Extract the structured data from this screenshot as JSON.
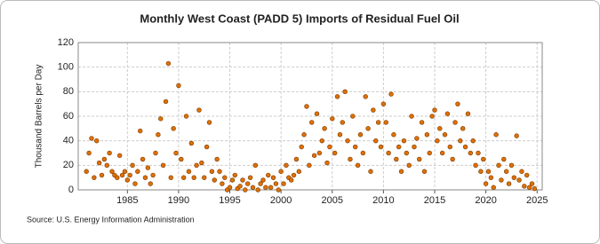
{
  "chart_data": {
    "type": "scatter",
    "title": "Monthly West Coast (PADD 5) Imports of Residual Fuel Oil",
    "y_label": "Thousand Barrels per Day",
    "source": "Source: U.S. Energy Information Administration",
    "xlim": [
      1980.2,
      2025.5
    ],
    "ylim": [
      0,
      120
    ],
    "xticks": [
      1985,
      1990,
      1995,
      2000,
      2005,
      2010,
      2015,
      2020,
      2025
    ],
    "yticks": [
      0,
      20,
      40,
      60,
      80,
      100,
      120
    ],
    "grid": true,
    "series": [
      {
        "color": "#e07000",
        "x": [
          1981,
          1981.25,
          1981.5,
          1981.75,
          1982,
          1982.25,
          1982.5,
          1982.75,
          1983,
          1983.25,
          1983.5,
          1983.75,
          1984,
          1984.25,
          1984.5,
          1984.75,
          1985,
          1985.25,
          1985.5,
          1985.75,
          1986,
          1986.25,
          1986.5,
          1986.75,
          1987,
          1987.25,
          1987.5,
          1987.75,
          1988,
          1988.25,
          1988.5,
          1988.75,
          1989,
          1989.25,
          1989.5,
          1989.75,
          1990,
          1990.25,
          1990.5,
          1990.75,
          1991,
          1991.25,
          1991.5,
          1991.75,
          1992,
          1992.25,
          1992.5,
          1992.75,
          1993,
          1993.25,
          1993.5,
          1993.75,
          1994,
          1994.25,
          1994.5,
          1994.75,
          1995,
          1995.25,
          1995.5,
          1995.75,
          1996,
          1996.25,
          1996.5,
          1996.75,
          1997,
          1997.25,
          1997.5,
          1997.75,
          1998,
          1998.25,
          1998.5,
          1998.75,
          1999,
          1999.25,
          1999.5,
          1999.75,
          2000,
          2000.25,
          2000.5,
          2000.75,
          2001,
          2001.25,
          2001.5,
          2001.75,
          2002,
          2002.25,
          2002.5,
          2002.75,
          2003,
          2003.25,
          2003.5,
          2003.75,
          2004,
          2004.25,
          2004.5,
          2004.75,
          2005,
          2005.25,
          2005.5,
          2005.75,
          2006,
          2006.25,
          2006.5,
          2006.75,
          2007,
          2007.25,
          2007.5,
          2007.75,
          2008,
          2008.25,
          2008.5,
          2008.75,
          2009,
          2009.25,
          2009.5,
          2009.75,
          2010,
          2010.25,
          2010.5,
          2010.75,
          2011,
          2011.25,
          2011.5,
          2011.75,
          2012,
          2012.25,
          2012.5,
          2012.75,
          2013,
          2013.25,
          2013.5,
          2013.75,
          2014,
          2014.25,
          2014.5,
          2014.75,
          2015,
          2015.25,
          2015.5,
          2015.75,
          2016,
          2016.25,
          2016.5,
          2016.75,
          2017,
          2017.25,
          2017.5,
          2017.75,
          2018,
          2018.25,
          2018.5,
          2018.75,
          2019,
          2019.25,
          2019.5,
          2019.75,
          2020,
          2020.25,
          2020.5,
          2020.75,
          2021,
          2021.25,
          2021.5,
          2021.75,
          2022,
          2022.25,
          2022.5,
          2022.75,
          2023,
          2023.25,
          2023.5,
          2023.75,
          2024,
          2024.25,
          2024.5,
          2024.75
        ],
        "values": [
          15,
          30,
          42,
          10,
          40,
          22,
          12,
          25,
          20,
          30,
          15,
          12,
          10,
          28,
          12,
          15,
          8,
          12,
          20,
          5,
          15,
          48,
          25,
          10,
          18,
          5,
          12,
          30,
          45,
          58,
          20,
          72,
          103,
          10,
          50,
          30,
          85,
          25,
          10,
          60,
          15,
          38,
          10,
          20,
          65,
          22,
          10,
          35,
          55,
          15,
          8,
          25,
          15,
          5,
          10,
          0,
          2,
          8,
          12,
          1,
          3,
          8,
          0,
          5,
          10,
          2,
          20,
          0,
          5,
          8,
          2,
          12,
          2,
          10,
          5,
          0,
          15,
          5,
          20,
          10,
          8,
          12,
          25,
          15,
          35,
          45,
          68,
          20,
          55,
          28,
          62,
          30,
          40,
          50,
          22,
          35,
          58,
          30,
          76,
          45,
          55,
          80,
          40,
          25,
          60,
          35,
          20,
          45,
          30,
          76,
          50,
          15,
          65,
          40,
          55,
          35,
          70,
          55,
          30,
          78,
          45,
          25,
          35,
          15,
          40,
          30,
          20,
          60,
          35,
          42,
          25,
          55,
          15,
          45,
          30,
          60,
          65,
          40,
          50,
          30,
          45,
          62,
          35,
          25,
          55,
          70,
          40,
          50,
          35,
          62,
          30,
          40,
          20,
          30,
          15,
          25,
          5,
          15,
          10,
          2,
          45,
          20,
          8,
          25,
          15,
          5,
          20,
          10,
          44,
          8,
          15,
          3,
          12,
          2,
          5,
          1
        ]
      }
    ]
  }
}
